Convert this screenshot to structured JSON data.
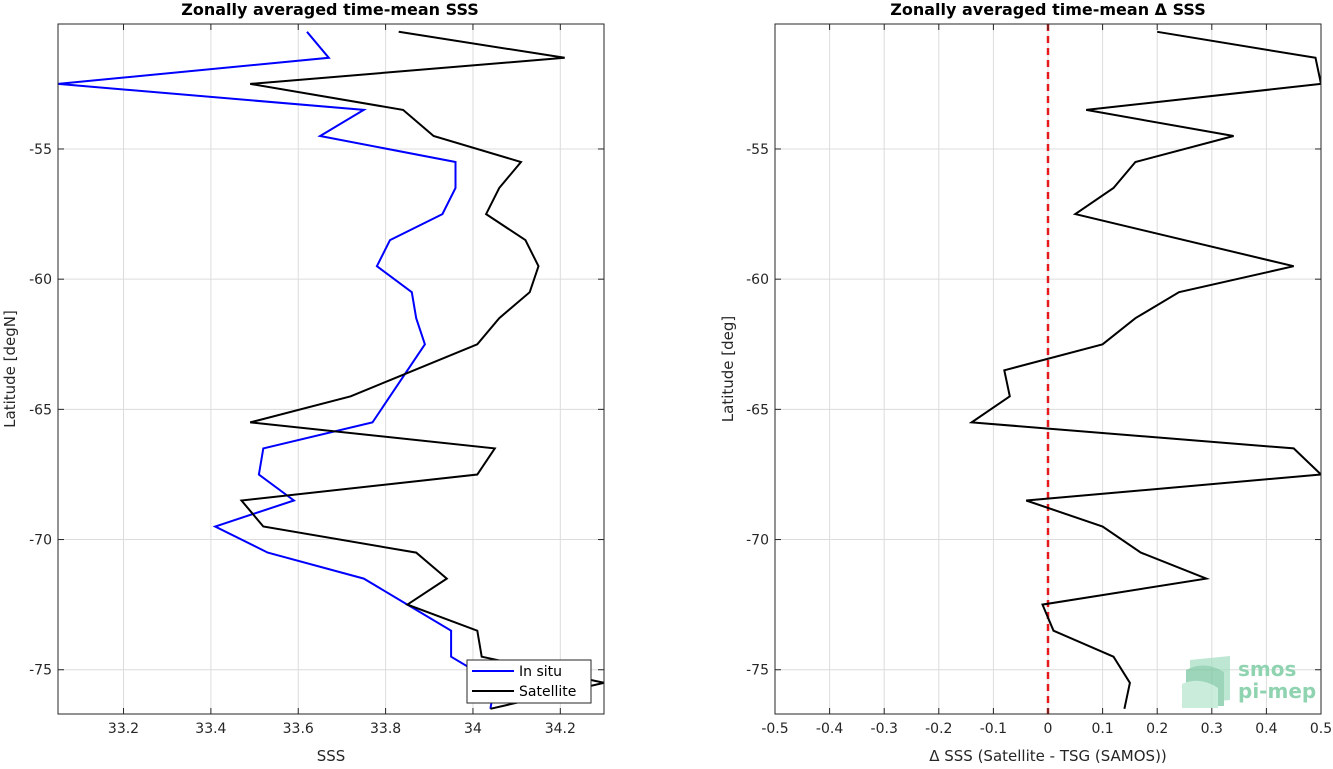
{
  "chart_data": [
    {
      "type": "line",
      "title": "Zonally averaged time-mean SSS",
      "xlabel": "SSS",
      "ylabel": "Latitude [degN]",
      "xlim": [
        33.05,
        34.3
      ],
      "ylim": [
        -76.7,
        -50.2
      ],
      "xticks": [
        33.2,
        33.4,
        33.6,
        33.8,
        34,
        34.2
      ],
      "xtick_labels": [
        "33.2",
        "33.4",
        "33.6",
        "33.8",
        "34",
        "34.2"
      ],
      "yticks": [
        -75,
        -70,
        -65,
        -60,
        -55
      ],
      "ytick_labels": [
        "-75",
        "-70",
        "-65",
        "-60",
        "-55"
      ],
      "grid": true,
      "legend_position": "bottom-right",
      "series": [
        {
          "name": "In situ",
          "color": "#0000ff",
          "x": [
            33.62,
            33.67,
            33.05,
            33.75,
            33.65,
            33.96,
            33.96,
            33.93,
            33.81,
            33.78,
            33.86,
            33.87,
            33.89,
            33.77,
            33.52,
            33.51,
            33.59,
            33.41,
            33.53,
            33.75,
            33.85,
            33.95,
            33.95,
            34.05,
            34.04
          ],
          "y": [
            -50.5,
            -51.5,
            -52.5,
            -53.5,
            -54.5,
            -55.5,
            -56.5,
            -57.5,
            -58.5,
            -59.5,
            -60.5,
            -61.5,
            -62.5,
            -65.5,
            -66.5,
            -67.5,
            -68.5,
            -69.5,
            -70.5,
            -71.5,
            -72.5,
            -73.5,
            -74.5,
            -75.5,
            -76.5
          ]
        },
        {
          "name": "Satellite",
          "color": "#000000",
          "x": [
            33.83,
            34.21,
            33.49,
            33.84,
            33.91,
            34.11,
            34.06,
            34.03,
            34.12,
            34.15,
            34.13,
            34.06,
            34.01,
            33.72,
            33.49,
            34.05,
            34.01,
            33.47,
            33.52,
            33.87,
            33.94,
            33.85,
            34.01,
            34.02,
            34.3,
            34.04
          ],
          "y": [
            -50.5,
            -51.5,
            -52.5,
            -53.5,
            -54.5,
            -55.5,
            -56.5,
            -57.5,
            -58.5,
            -59.5,
            -60.5,
            -61.5,
            -62.5,
            -64.5,
            -65.5,
            -66.5,
            -67.5,
            -68.5,
            -69.5,
            -70.5,
            -71.5,
            -72.5,
            -73.5,
            -74.5,
            -75.5,
            -76.5
          ]
        }
      ]
    },
    {
      "type": "line",
      "title": "Zonally averaged time-mean Δ SSS",
      "xlabel": "Δ SSS (Satellite - TSG (SAMOS))",
      "ylabel": "Latitude [deg]",
      "xlim": [
        -0.5,
        0.5
      ],
      "ylim": [
        -76.7,
        -50.2
      ],
      "xticks": [
        -0.5,
        -0.4,
        -0.3,
        -0.2,
        -0.1,
        0,
        0.1,
        0.2,
        0.3,
        0.4,
        0.5
      ],
      "xtick_labels": [
        "-0.5",
        "-0.4",
        "-0.3",
        "-0.2",
        "-0.1",
        "0",
        "0.1",
        "0.2",
        "0.3",
        "0.4",
        "0.5"
      ],
      "yticks": [
        -75,
        -70,
        -65,
        -60,
        -55
      ],
      "ytick_labels": [
        "-75",
        "-70",
        "-65",
        "-60",
        "-55"
      ],
      "grid": true,
      "reference_line": {
        "x": 0,
        "color": "#e41a1c",
        "style": "dashed"
      },
      "series": [
        {
          "color": "#000000",
          "x": [
            0.2,
            0.49,
            0.5,
            0.07,
            0.34,
            0.16,
            0.12,
            0.05,
            0.45,
            0.24,
            0.16,
            0.1,
            -0.08,
            -0.07,
            -0.14,
            0.45,
            0.5,
            -0.04,
            0.1,
            0.17,
            0.29,
            -0.01,
            0.01,
            0.12,
            0.15,
            0.14
          ],
          "y": [
            -50.5,
            -51.5,
            -52.5,
            -53.5,
            -54.5,
            -55.5,
            -56.5,
            -57.5,
            -59.5,
            -60.5,
            -61.5,
            -62.5,
            -63.5,
            -64.5,
            -65.5,
            -66.5,
            -67.5,
            -68.5,
            -69.5,
            -70.5,
            -71.5,
            -72.5,
            -73.5,
            -74.5,
            -75.5,
            -76.5
          ]
        }
      ]
    }
  ],
  "logo": {
    "line1": "smos",
    "line2": "pi-mep",
    "color": "#8fd3b0"
  }
}
